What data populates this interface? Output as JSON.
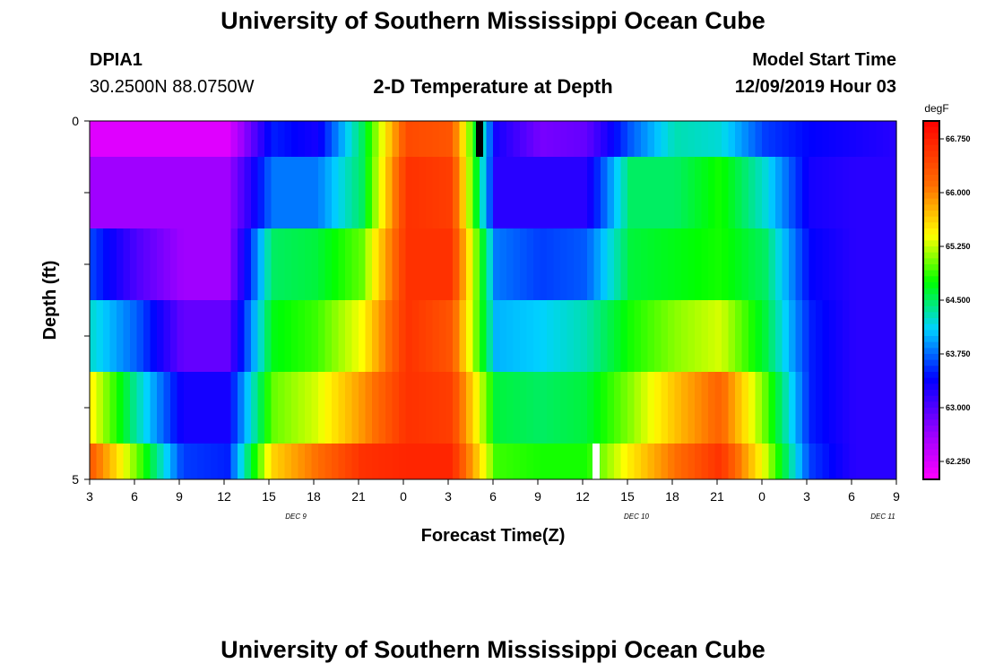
{
  "header": {
    "title_top": "University of Southern Mississippi Ocean Cube",
    "title_bottom": "University of Southern Mississippi Ocean Cube",
    "station_id": "DPIA1",
    "coordinates": "30.2500N 88.0750W",
    "plot_title": "2-D Temperature at Depth",
    "model_start_label": "Model Start Time",
    "model_start_value": "12/09/2019 Hour 03"
  },
  "chart_data": {
    "type": "heatmap",
    "title": "2-D Temperature at Depth",
    "xlabel": "Forecast Time(Z)",
    "ylabel": "Depth (ft)",
    "ylim": [
      0,
      5
    ],
    "y_tick_labels": [
      "0",
      "",
      "",
      "",
      "",
      "5"
    ],
    "x_tick_labels": [
      "3",
      "6",
      "9",
      "12",
      "15",
      "18",
      "21",
      "0",
      "3",
      "6",
      "9",
      "12",
      "15",
      "18",
      "21",
      "0",
      "3",
      "6",
      "9"
    ],
    "date_labels": [
      {
        "text": "DEC 9",
        "hour_index": 4.6
      },
      {
        "text": "DEC 10",
        "hour_index": 12.2
      },
      {
        "text": "DEC 11",
        "hour_index": 17.7
      }
    ],
    "colorbar": {
      "unit": "degF",
      "min": 62.0,
      "max": 67.0,
      "tick_labels": [
        "66.750",
        "66.000",
        "65.250",
        "64.500",
        "63.750",
        "63.000",
        "62.250"
      ],
      "tick_values": [
        66.75,
        66.0,
        65.25,
        64.5,
        63.75,
        63.0,
        62.25
      ]
    },
    "x_hours": [
      0,
      3,
      6,
      9,
      12,
      15,
      18,
      21,
      24,
      27,
      30,
      33,
      36,
      39,
      42,
      45,
      48,
      51,
      54
    ],
    "depth_rows": [
      0,
      1,
      2,
      3,
      4,
      5
    ],
    "depth_layers": [
      {
        "depth": 0.25,
        "temps": [
          62.2,
          62.2,
          62.2,
          62.2,
          63.5,
          63.3,
          64.5,
          66.4,
          66.3,
          63.3,
          62.8,
          62.9,
          63.7,
          64.3,
          64.2,
          63.6,
          63.4,
          63.3,
          63.2
        ]
      },
      {
        "depth": 0.75,
        "temps": [
          62.6,
          62.6,
          62.6,
          62.6,
          63.8,
          63.8,
          64.5,
          66.6,
          66.5,
          63.2,
          63.2,
          63.2,
          64.5,
          64.5,
          64.8,
          64.2,
          63.3,
          63.2,
          63.2
        ]
      },
      {
        "depth": 1.5,
        "temps": [
          63.6,
          63.0,
          62.6,
          62.6,
          64.5,
          64.6,
          65.0,
          66.6,
          66.6,
          63.8,
          63.6,
          63.7,
          64.6,
          64.7,
          64.8,
          64.5,
          63.4,
          63.2,
          63.2
        ]
      },
      {
        "depth": 2.5,
        "temps": [
          64.2,
          63.7,
          62.9,
          62.9,
          64.7,
          64.9,
          65.4,
          66.6,
          66.3,
          64.0,
          64.1,
          64.3,
          64.8,
          65.1,
          65.3,
          64.6,
          63.5,
          63.2,
          63.2
        ]
      },
      {
        "depth": 3.5,
        "temps": [
          65.4,
          64.3,
          63.3,
          63.3,
          65.0,
          65.3,
          65.9,
          66.6,
          66.5,
          64.6,
          64.5,
          64.6,
          65.1,
          65.7,
          66.2,
          65.0,
          63.5,
          63.2,
          63.2
        ]
      },
      {
        "depth": 4.5,
        "temps": [
          66.2,
          65.0,
          63.6,
          63.5,
          65.6,
          66.1,
          66.6,
          66.7,
          66.7,
          64.9,
          64.8,
          64.8,
          65.5,
          66.1,
          66.6,
          65.3,
          63.6,
          63.2,
          63.2
        ]
      }
    ],
    "markers": [
      {
        "color": "#000000",
        "hour": 26.1,
        "depth_from": 0.0,
        "depth_to": 0.5
      },
      {
        "color": "#ffffff",
        "hour": 33.9,
        "depth_from": 4.5,
        "depth_to": 5.0
      }
    ]
  }
}
